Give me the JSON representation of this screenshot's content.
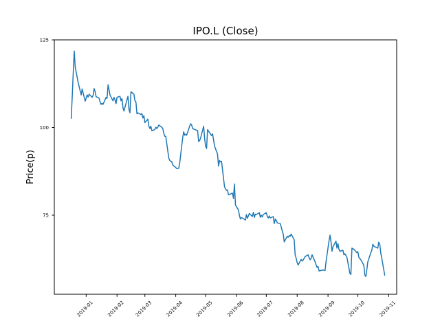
{
  "figure": {
    "title": "IPO.L (Close)",
    "ylabel": "Price(p)",
    "background": "#ffffff",
    "axes_edge_color": "#000000",
    "text_color": "#000000"
  },
  "chart_data": {
    "type": "line",
    "title": "IPO.L (Close)",
    "xlabel": "",
    "ylabel": "Price(p)",
    "grid": false,
    "legend": "none",
    "line_color": "#1f77b4",
    "line_width": 1.5,
    "x_tick_labels": [
      "2019-01",
      "2019-02",
      "2019-03",
      "2019-04",
      "2019-05",
      "2019-06",
      "2019-07",
      "2019-08",
      "2019-09",
      "2019-10",
      "2019-11"
    ],
    "x_tick_dates": [
      "2019-01-01",
      "2019-02-01",
      "2019-03-01",
      "2019-04-01",
      "2019-05-01",
      "2019-06-01",
      "2019-07-01",
      "2019-08-01",
      "2019-09-01",
      "2019-10-01",
      "2019-11-01"
    ],
    "x_tick_rotation": 45,
    "y_ticks": [
      75,
      100,
      125
    ],
    "xlim": [
      "2018-11-30",
      "2019-11-09"
    ],
    "ylim": [
      52.45,
      125.0
    ],
    "series": [
      {
        "name": "Close",
        "points": [
          [
            "2018-12-17",
            102.6
          ],
          [
            "2018-12-18",
            109.0
          ],
          [
            "2018-12-19",
            115.5
          ],
          [
            "2018-12-20",
            121.8
          ],
          [
            "2018-12-21",
            117.3
          ],
          [
            "2018-12-24",
            112.8
          ],
          [
            "2018-12-27",
            109.3
          ],
          [
            "2018-12-28",
            111.0
          ],
          [
            "2018-12-31",
            107.5
          ],
          [
            "2019-01-02",
            109.3
          ],
          [
            "2019-01-03",
            108.7
          ],
          [
            "2019-01-04",
            109.5
          ],
          [
            "2019-01-07",
            108.6
          ],
          [
            "2019-01-08",
            109.2
          ],
          [
            "2019-01-09",
            111.1
          ],
          [
            "2019-01-10",
            110.2
          ],
          [
            "2019-01-11",
            108.8
          ],
          [
            "2019-01-14",
            108.4
          ],
          [
            "2019-01-15",
            107.3
          ],
          [
            "2019-01-16",
            106.6
          ],
          [
            "2019-01-17",
            106.9
          ],
          [
            "2019-01-18",
            106.6
          ],
          [
            "2019-01-21",
            108.6
          ],
          [
            "2019-01-22",
            108.3
          ],
          [
            "2019-01-23",
            112.2
          ],
          [
            "2019-01-24",
            110.8
          ],
          [
            "2019-01-25",
            109.2
          ],
          [
            "2019-01-28",
            107.6
          ],
          [
            "2019-01-29",
            108.6
          ],
          [
            "2019-01-30",
            107.9
          ],
          [
            "2019-01-31",
            106.8
          ],
          [
            "2019-02-01",
            108.6
          ],
          [
            "2019-02-04",
            108.9
          ],
          [
            "2019-02-05",
            107.6
          ],
          [
            "2019-02-06",
            108.3
          ],
          [
            "2019-02-07",
            105.6
          ],
          [
            "2019-02-08",
            104.7
          ],
          [
            "2019-02-11",
            107.9
          ],
          [
            "2019-02-12",
            108.9
          ],
          [
            "2019-02-13",
            105.2
          ],
          [
            "2019-02-14",
            104.2
          ],
          [
            "2019-02-15",
            110.2
          ],
          [
            "2019-02-18",
            109.5
          ],
          [
            "2019-02-19",
            107.6
          ],
          [
            "2019-02-20",
            107.3
          ],
          [
            "2019-02-21",
            103.9
          ],
          [
            "2019-02-22",
            104.2
          ],
          [
            "2019-02-25",
            103.7
          ],
          [
            "2019-02-26",
            104.0
          ],
          [
            "2019-02-27",
            102.7
          ],
          [
            "2019-02-28",
            103.4
          ],
          [
            "2019-03-01",
            101.4
          ],
          [
            "2019-03-04",
            102.4
          ],
          [
            "2019-03-05",
            100.4
          ],
          [
            "2019-03-06",
            99.7
          ],
          [
            "2019-03-07",
            100.4
          ],
          [
            "2019-03-08",
            99.1
          ],
          [
            "2019-03-11",
            99.4
          ],
          [
            "2019-03-12",
            100.1
          ],
          [
            "2019-03-13",
            99.7
          ],
          [
            "2019-03-14",
            100.1
          ],
          [
            "2019-03-15",
            100.7
          ],
          [
            "2019-03-18",
            100.1
          ],
          [
            "2019-03-19",
            99.7
          ],
          [
            "2019-03-20",
            98.4
          ],
          [
            "2019-03-21",
            97.5
          ],
          [
            "2019-03-22",
            97.5
          ],
          [
            "2019-03-25",
            91.3
          ],
          [
            "2019-03-26",
            90.6
          ],
          [
            "2019-03-27",
            90.4
          ],
          [
            "2019-03-28",
            90.3
          ],
          [
            "2019-03-29",
            89.3
          ],
          [
            "2019-04-01",
            88.6
          ],
          [
            "2019-04-02",
            88.3
          ],
          [
            "2019-04-03",
            88.3
          ],
          [
            "2019-04-04",
            88.4
          ],
          [
            "2019-04-05",
            89.9
          ],
          [
            "2019-04-08",
            97.2
          ],
          [
            "2019-04-09",
            98.8
          ],
          [
            "2019-04-10",
            97.8
          ],
          [
            "2019-04-11",
            98.1
          ],
          [
            "2019-04-12",
            97.8
          ],
          [
            "2019-04-15",
            100.4
          ],
          [
            "2019-04-16",
            101.1
          ],
          [
            "2019-04-17",
            100.7
          ],
          [
            "2019-04-18",
            99.7
          ],
          [
            "2019-04-23",
            99.1
          ],
          [
            "2019-04-24",
            96.0
          ],
          [
            "2019-04-25",
            96.3
          ],
          [
            "2019-04-26",
            97.0
          ],
          [
            "2019-04-29",
            100.4
          ],
          [
            "2019-04-30",
            97.0
          ],
          [
            "2019-05-01",
            94.7
          ],
          [
            "2019-05-02",
            94.0
          ],
          [
            "2019-05-03",
            99.4
          ],
          [
            "2019-05-07",
            97.7
          ],
          [
            "2019-05-08",
            98.2
          ],
          [
            "2019-05-09",
            96.5
          ],
          [
            "2019-05-10",
            94.7
          ],
          [
            "2019-05-13",
            92.4
          ],
          [
            "2019-05-14",
            89.0
          ],
          [
            "2019-05-15",
            90.6
          ],
          [
            "2019-05-16",
            90.2
          ],
          [
            "2019-05-17",
            90.4
          ],
          [
            "2019-05-20",
            83.1
          ],
          [
            "2019-05-21",
            82.5
          ],
          [
            "2019-05-22",
            82.1
          ],
          [
            "2019-05-23",
            82.2
          ],
          [
            "2019-05-24",
            80.8
          ],
          [
            "2019-05-28",
            81.3
          ],
          [
            "2019-05-29",
            79.8
          ],
          [
            "2019-05-30",
            83.9
          ],
          [
            "2019-05-31",
            77.9
          ],
          [
            "2019-06-03",
            76.5
          ],
          [
            "2019-06-04",
            74.9
          ],
          [
            "2019-06-05",
            73.9
          ],
          [
            "2019-06-06",
            74.3
          ],
          [
            "2019-06-07",
            74.2
          ],
          [
            "2019-06-10",
            73.6
          ],
          [
            "2019-06-11",
            75.2
          ],
          [
            "2019-06-12",
            74.1
          ],
          [
            "2019-06-13",
            74.8
          ],
          [
            "2019-06-14",
            75.5
          ],
          [
            "2019-06-17",
            74.6
          ],
          [
            "2019-06-18",
            75.8
          ],
          [
            "2019-06-19",
            74.4
          ],
          [
            "2019-06-20",
            75.3
          ],
          [
            "2019-06-21",
            75.2
          ],
          [
            "2019-06-24",
            75.7
          ],
          [
            "2019-06-25",
            74.4
          ],
          [
            "2019-06-26",
            75.0
          ],
          [
            "2019-06-27",
            74.5
          ],
          [
            "2019-06-28",
            75.2
          ],
          [
            "2019-07-01",
            75.7
          ],
          [
            "2019-07-02",
            74.6
          ],
          [
            "2019-07-03",
            74.2
          ],
          [
            "2019-07-04",
            74.8
          ],
          [
            "2019-07-05",
            74.2
          ],
          [
            "2019-07-08",
            74.6
          ],
          [
            "2019-07-09",
            72.6
          ],
          [
            "2019-07-10",
            73.9
          ],
          [
            "2019-07-11",
            73.5
          ],
          [
            "2019-07-12",
            72.8
          ],
          [
            "2019-07-15",
            72.6
          ],
          [
            "2019-07-16",
            71.6
          ],
          [
            "2019-07-17",
            70.5
          ],
          [
            "2019-07-18",
            69.6
          ],
          [
            "2019-07-19",
            67.4
          ],
          [
            "2019-07-22",
            69.0
          ],
          [
            "2019-07-23",
            68.7
          ],
          [
            "2019-07-24",
            69.2
          ],
          [
            "2019-07-25",
            69.0
          ],
          [
            "2019-07-26",
            69.6
          ],
          [
            "2019-07-29",
            68.0
          ],
          [
            "2019-07-30",
            63.7
          ],
          [
            "2019-07-31",
            62.7
          ],
          [
            "2019-08-01",
            61.5
          ],
          [
            "2019-08-02",
            60.8
          ],
          [
            "2019-08-05",
            62.4
          ],
          [
            "2019-08-06",
            61.9
          ],
          [
            "2019-08-07",
            62.2
          ],
          [
            "2019-08-08",
            62.7
          ],
          [
            "2019-08-09",
            63.2
          ],
          [
            "2019-08-12",
            63.7
          ],
          [
            "2019-08-13",
            62.9
          ],
          [
            "2019-08-14",
            62.3
          ],
          [
            "2019-08-15",
            62.7
          ],
          [
            "2019-08-16",
            63.7
          ],
          [
            "2019-08-19",
            61.7
          ],
          [
            "2019-08-20",
            60.9
          ],
          [
            "2019-08-21",
            60.1
          ],
          [
            "2019-08-22",
            60.4
          ],
          [
            "2019-08-23",
            59.1
          ],
          [
            "2019-08-27",
            59.4
          ],
          [
            "2019-08-28",
            59.3
          ],
          [
            "2019-08-29",
            59.2
          ],
          [
            "2019-08-30",
            61.7
          ],
          [
            "2019-09-02",
            67.7
          ],
          [
            "2019-09-03",
            69.3
          ],
          [
            "2019-09-04",
            67.4
          ],
          [
            "2019-09-05",
            64.7
          ],
          [
            "2019-09-06",
            66.0
          ],
          [
            "2019-09-09",
            67.6
          ],
          [
            "2019-09-10",
            65.6
          ],
          [
            "2019-09-11",
            66.9
          ],
          [
            "2019-09-12",
            65.3
          ],
          [
            "2019-09-13",
            64.7
          ],
          [
            "2019-09-16",
            65.0
          ],
          [
            "2019-09-17",
            63.7
          ],
          [
            "2019-09-18",
            64.0
          ],
          [
            "2019-09-19",
            63.5
          ],
          [
            "2019-09-20",
            63.0
          ],
          [
            "2019-09-23",
            58.4
          ],
          [
            "2019-09-24",
            58.1
          ],
          [
            "2019-09-25",
            65.6
          ],
          [
            "2019-09-26",
            65.4
          ],
          [
            "2019-09-27",
            65.3
          ],
          [
            "2019-09-30",
            64.3
          ],
          [
            "2019-10-01",
            64.6
          ],
          [
            "2019-10-02",
            63.0
          ],
          [
            "2019-10-03",
            62.6
          ],
          [
            "2019-10-04",
            62.3
          ],
          [
            "2019-10-07",
            60.7
          ],
          [
            "2019-10-08",
            57.9
          ],
          [
            "2019-10-09",
            57.5
          ],
          [
            "2019-10-10",
            59.5
          ],
          [
            "2019-10-11",
            61.7
          ],
          [
            "2019-10-14",
            64.3
          ],
          [
            "2019-10-15",
            65.0
          ],
          [
            "2019-10-16",
            66.7
          ],
          [
            "2019-10-17",
            66.2
          ],
          [
            "2019-10-18",
            66.0
          ],
          [
            "2019-10-21",
            65.6
          ],
          [
            "2019-10-22",
            67.3
          ],
          [
            "2019-10-23",
            66.7
          ],
          [
            "2019-10-24",
            64.3
          ],
          [
            "2019-10-25",
            62.7
          ],
          [
            "2019-10-28",
            57.9
          ]
        ]
      }
    ]
  }
}
